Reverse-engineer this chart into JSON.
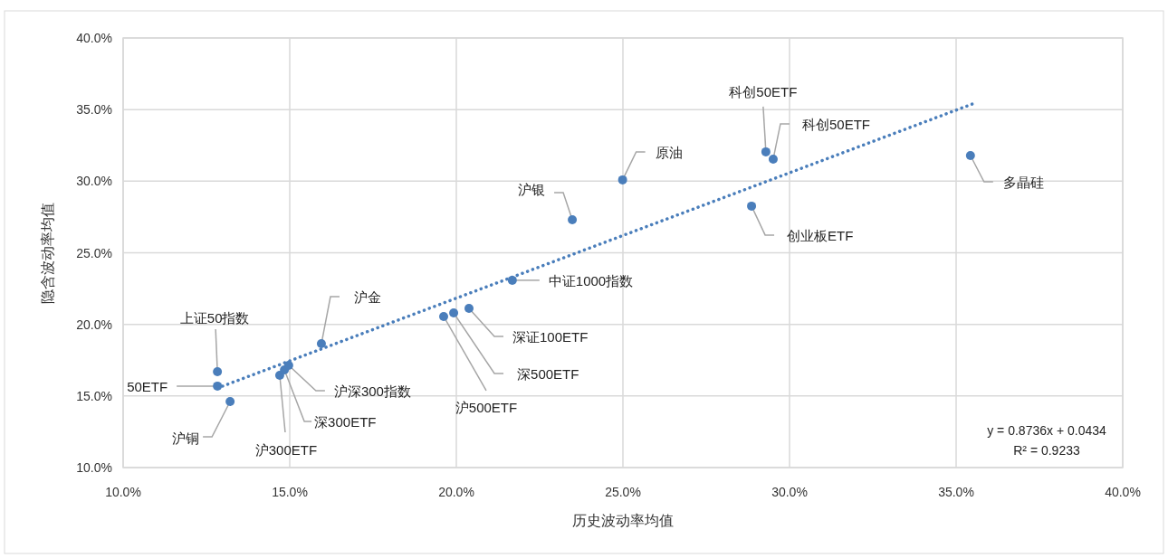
{
  "chart_data": {
    "type": "scatter",
    "xlabel": "历史波动率均值",
    "ylabel": "隐含波动率均值",
    "xlim": [
      10,
      40
    ],
    "ylim": [
      10,
      40
    ],
    "xticks": [
      {
        "value": 10,
        "label": "10.0%"
      },
      {
        "value": 15,
        "label": "15.0%"
      },
      {
        "value": 20,
        "label": "20.0%"
      },
      {
        "value": 25,
        "label": "25.0%"
      },
      {
        "value": 30,
        "label": "30.0%"
      },
      {
        "value": 35,
        "label": "35.0%"
      },
      {
        "value": 40,
        "label": "40.0%"
      }
    ],
    "yticks": [
      {
        "value": 10,
        "label": "10.0%"
      },
      {
        "value": 15,
        "label": "15.0%"
      },
      {
        "value": 20,
        "label": "20.0%"
      },
      {
        "value": 25,
        "label": "25.0%"
      },
      {
        "value": 30,
        "label": "30.0%"
      },
      {
        "value": 35,
        "label": "35.0%"
      },
      {
        "value": 40,
        "label": "40.0%"
      }
    ],
    "grid": true,
    "series": [
      {
        "type": "scatter",
        "marker": "circle",
        "color": "#4a7ebb",
        "x": [
          12.83,
          12.83,
          13.21,
          14.7,
          14.84,
          14.97,
          15.95,
          19.62,
          19.92,
          20.38,
          21.68,
          23.48,
          24.99,
          29.29,
          29.51,
          28.86,
          35.43
        ],
        "values": [
          16.7,
          15.69,
          14.61,
          16.44,
          16.82,
          17.14,
          18.65,
          20.55,
          20.8,
          21.12,
          23.08,
          27.31,
          30.09,
          32.05,
          31.54,
          28.26,
          31.79
        ]
      },
      {
        "type": "line",
        "line_style": "dotted",
        "color": "#4a7ebb",
        "x": [
          12.83,
          35.5
        ],
        "values": [
          15.55,
          35.4
        ]
      }
    ],
    "annotations": [
      {
        "text": "上证50指数",
        "x": 12.83,
        "y": 16.7
      },
      {
        "text": "50ETF",
        "x": 12.83,
        "y": 15.69
      },
      {
        "text": "沪铜",
        "x": 13.21,
        "y": 14.61
      },
      {
        "text": "沪300ETF",
        "x": 14.7,
        "y": 16.44
      },
      {
        "text": "深300ETF",
        "x": 14.84,
        "y": 16.82
      },
      {
        "text": "沪深300指数",
        "x": 14.97,
        "y": 17.14
      },
      {
        "text": "沪金",
        "x": 15.95,
        "y": 18.65
      },
      {
        "text": "沪500ETF",
        "x": 19.62,
        "y": 20.55
      },
      {
        "text": "深500ETF",
        "x": 19.92,
        "y": 20.8
      },
      {
        "text": "深证100ETF",
        "x": 20.38,
        "y": 21.12
      },
      {
        "text": "中证1000指数",
        "x": 21.68,
        "y": 23.08
      },
      {
        "text": "沪银",
        "x": 23.48,
        "y": 27.31
      },
      {
        "text": "原油",
        "x": 24.99,
        "y": 30.09
      },
      {
        "text": "科创50ETF",
        "x": 29.29,
        "y": 32.05
      },
      {
        "text": "科创50ETF",
        "x": 29.51,
        "y": 31.54
      },
      {
        "text": "创业板ETF",
        "x": 28.86,
        "y": 28.26
      },
      {
        "text": "多晶硅",
        "x": 35.43,
        "y": 31.79
      },
      "y = 0.8736x + 0.0434",
      "R² = 0.9233"
    ]
  }
}
